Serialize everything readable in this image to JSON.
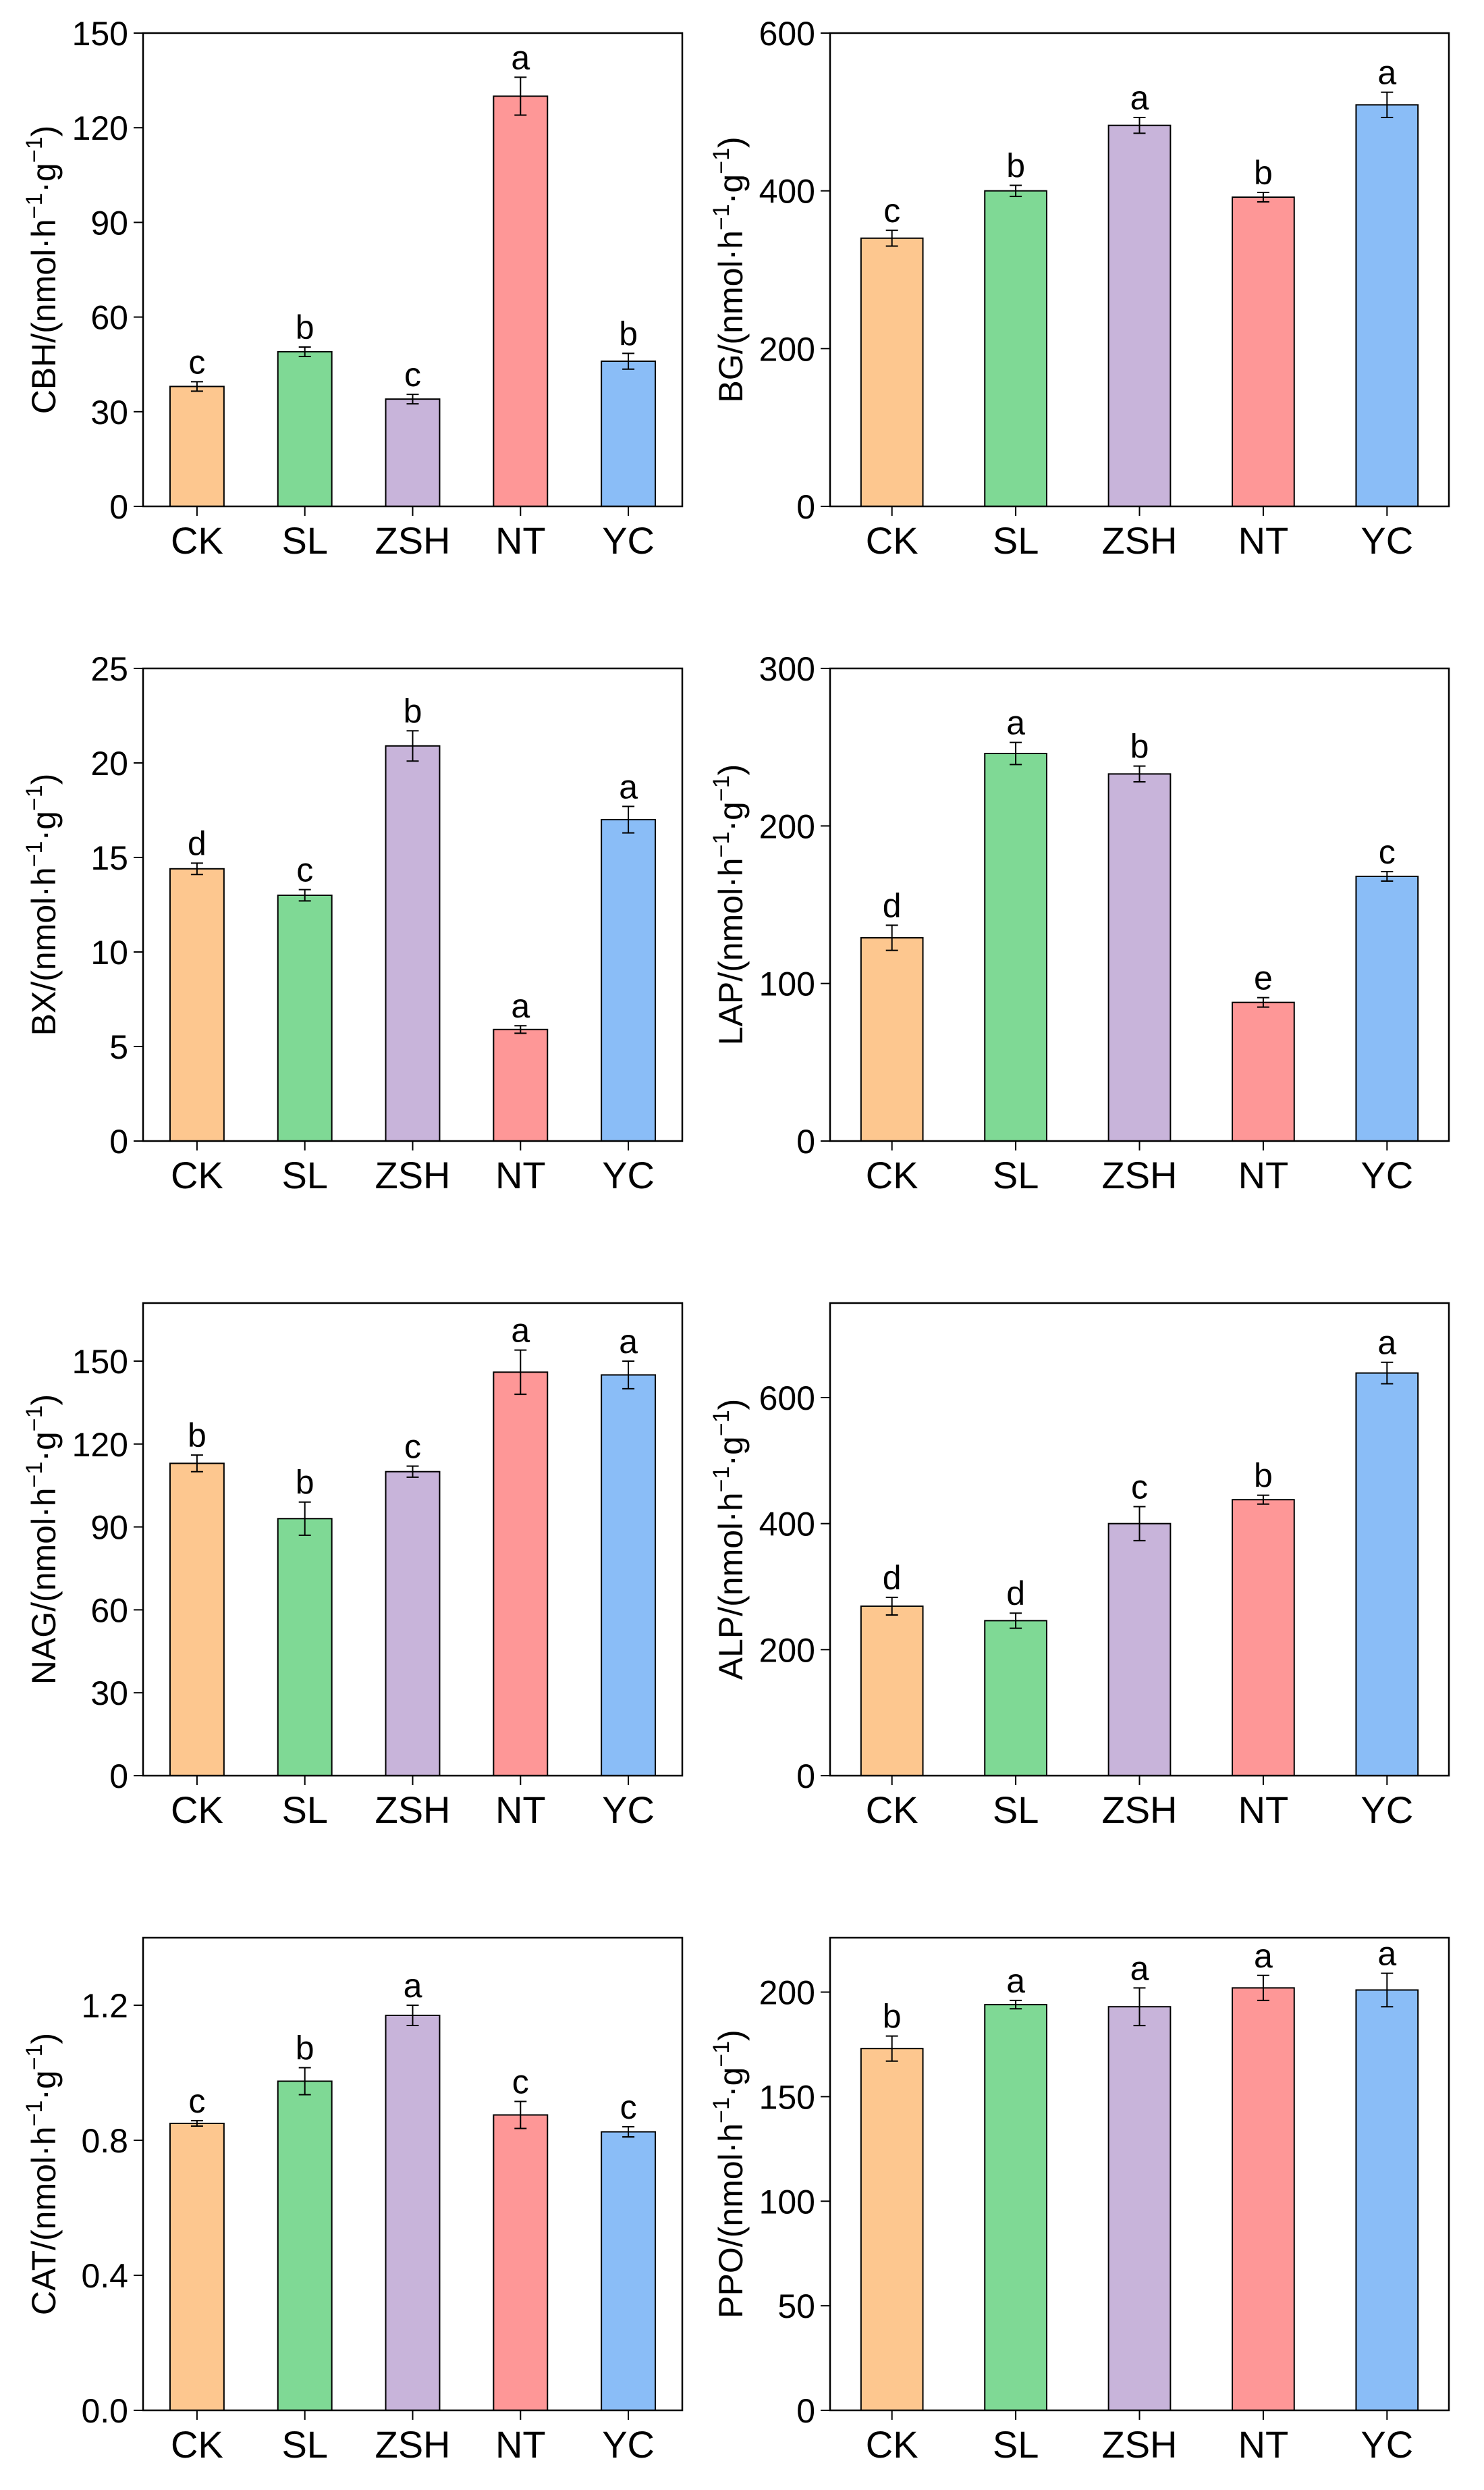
{
  "colors": {
    "CK": "#fdc78f",
    "SL": "#7fd995",
    "ZSH": "#c8b4da",
    "NT": "#fe9797",
    "YC": "#8abdf7",
    "axis": "#000000"
  },
  "chart_data": [
    {
      "type": "bar",
      "ylabel_prefix": "CBH/(nmol·h",
      "ylabel_mid": "·g",
      "ylabel_suffix": ")",
      "ylabel_exp": "−1",
      "categories": [
        "CK",
        "SL",
        "ZSH",
        "NT",
        "YC"
      ],
      "values": [
        38,
        49,
        34,
        130,
        46
      ],
      "errors": [
        1.5,
        1.5,
        1.5,
        6,
        2.5
      ],
      "letters": [
        "c",
        "b",
        "c",
        "a",
        "b"
      ],
      "ylim": [
        0,
        150
      ],
      "yticks": [
        0,
        30,
        60,
        90,
        120,
        150
      ]
    },
    {
      "type": "bar",
      "ylabel_prefix": "BG/(nmol·h",
      "ylabel_mid": "·g",
      "ylabel_suffix": ")",
      "ylabel_exp": "−1",
      "categories": [
        "CK",
        "SL",
        "ZSH",
        "NT",
        "YC"
      ],
      "values": [
        340,
        400,
        483,
        392,
        509
      ],
      "errors": [
        10,
        7,
        10,
        6,
        16
      ],
      "letters": [
        "c",
        "b",
        "a",
        "b",
        "a"
      ],
      "ylim": [
        0,
        600
      ],
      "yticks": [
        0,
        200,
        400,
        600
      ]
    },
    {
      "type": "bar",
      "ylabel_prefix": "BX/(nmol·h",
      "ylabel_mid": "·g",
      "ylabel_suffix": ")",
      "ylabel_exp": "−1",
      "categories": [
        "CK",
        "SL",
        "ZSH",
        "NT",
        "YC"
      ],
      "values": [
        14.4,
        13.0,
        20.9,
        5.9,
        17.0
      ],
      "errors": [
        0.3,
        0.3,
        0.8,
        0.2,
        0.7
      ],
      "letters": [
        "d",
        "c",
        "b",
        "a",
        "a"
      ],
      "ylim": [
        0,
        25
      ],
      "yticks": [
        0,
        5,
        10,
        15,
        20,
        25
      ]
    },
    {
      "type": "bar",
      "ylabel_prefix": "LAP/(nmol·h",
      "ylabel_mid": "·g",
      "ylabel_suffix": ")",
      "ylabel_exp": "−1",
      "categories": [
        "CK",
        "SL",
        "ZSH",
        "NT",
        "YC"
      ],
      "values": [
        129,
        246,
        233,
        88,
        168
      ],
      "errors": [
        8,
        7,
        5,
        3,
        3
      ],
      "letters": [
        "d",
        "a",
        "b",
        "e",
        "c"
      ],
      "ylim": [
        0,
        300
      ],
      "yticks": [
        0,
        100,
        200,
        300
      ]
    },
    {
      "type": "bar",
      "ylabel_prefix": "NAG/(nmol·h",
      "ylabel_mid": "·g",
      "ylabel_suffix": ")",
      "ylabel_exp": "−1",
      "categories": [
        "CK",
        "SL",
        "ZSH",
        "NT",
        "YC"
      ],
      "values": [
        113,
        93,
        110,
        146,
        145
      ],
      "errors": [
        3,
        6,
        2,
        8,
        5
      ],
      "letters": [
        "b",
        "b",
        "c",
        "a",
        "a"
      ],
      "ylim": [
        0,
        171
      ],
      "yticks": [
        0,
        30,
        60,
        90,
        120,
        150
      ]
    },
    {
      "type": "bar",
      "ylabel_prefix": "ALP/(nmol·h",
      "ylabel_mid": "·g",
      "ylabel_suffix": ")",
      "ylabel_exp": "−1",
      "categories": [
        "CK",
        "SL",
        "ZSH",
        "NT",
        "YC"
      ],
      "values": [
        269,
        246,
        400,
        438,
        639
      ],
      "errors": [
        14,
        12,
        27,
        7,
        17
      ],
      "letters": [
        "d",
        "d",
        "c",
        "b",
        "a"
      ],
      "ylim": [
        0,
        750
      ],
      "yticks": [
        0,
        200,
        400,
        600
      ]
    },
    {
      "type": "bar",
      "ylabel_prefix": "CAT/(nmol·h",
      "ylabel_mid": "·g",
      "ylabel_suffix": ")",
      "ylabel_exp": "−1",
      "categories": [
        "CK",
        "SL",
        "ZSH",
        "NT",
        "YC"
      ],
      "values": [
        0.85,
        0.975,
        1.17,
        0.875,
        0.825
      ],
      "errors": [
        0.008,
        0.04,
        0.03,
        0.04,
        0.015
      ],
      "letters": [
        "c",
        "b",
        "a",
        "c",
        "c"
      ],
      "ylim": [
        0,
        1.4
      ],
      "yticks": [
        0.0,
        0.4,
        0.8,
        1.2
      ],
      "tick_decimals": 1
    },
    {
      "type": "bar",
      "ylabel_prefix": "PPO/(nmol·h",
      "ylabel_mid": "·g",
      "ylabel_suffix": ")",
      "ylabel_exp": "−1",
      "categories": [
        "CK",
        "SL",
        "ZSH",
        "NT",
        "YC"
      ],
      "values": [
        173,
        194,
        193,
        202,
        201
      ],
      "errors": [
        6,
        2,
        9,
        6,
        8
      ],
      "letters": [
        "b",
        "a",
        "a",
        "a",
        "a"
      ],
      "ylim": [
        0,
        226
      ],
      "yticks": [
        0,
        50,
        100,
        150,
        200
      ]
    }
  ]
}
